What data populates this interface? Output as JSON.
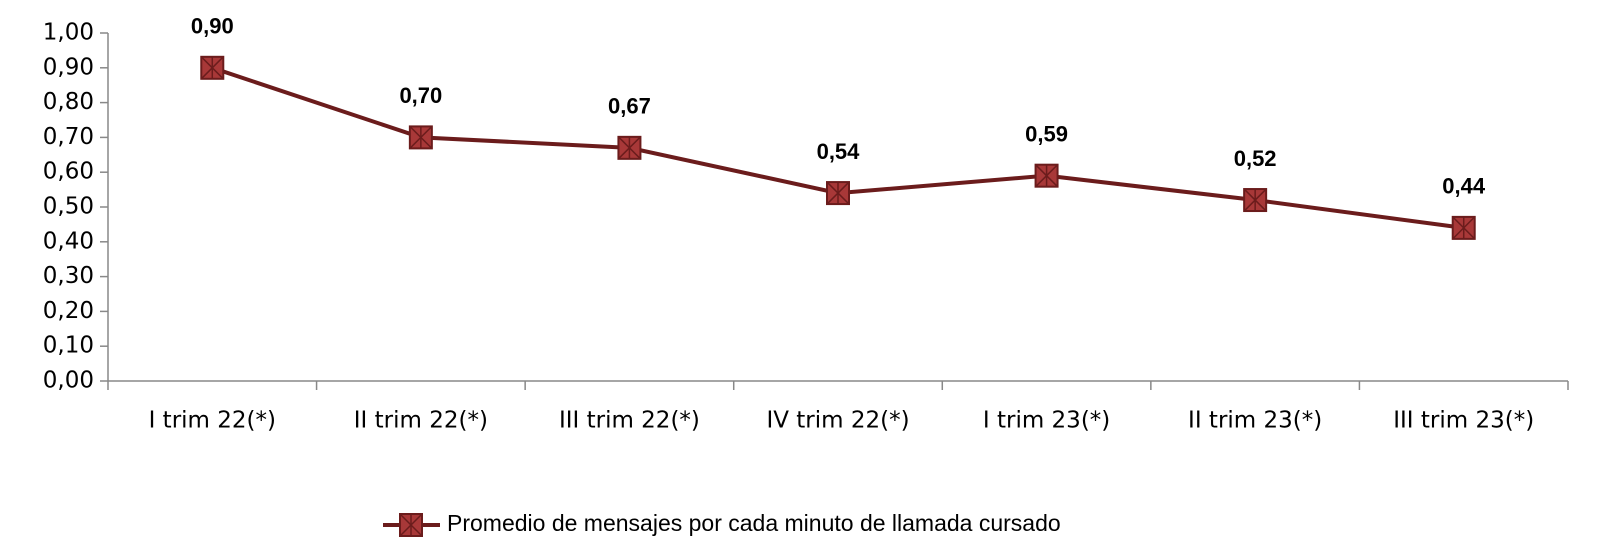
{
  "chart_data": {
    "type": "line",
    "categories": [
      "I trim 22(*)",
      "II trim 22(*)",
      "III trim 22(*)",
      "IV trim 22(*)",
      "I trim 23(*)",
      "II trim 23(*)",
      "III trim 23(*)"
    ],
    "series": [
      {
        "name": "Promedio de mensajes por cada minuto de llamada cursado",
        "color": "#6b1c1c",
        "marker_color": "#a83838",
        "values": [
          0.9,
          0.7,
          0.67,
          0.54,
          0.59,
          0.52,
          0.44
        ],
        "value_labels": [
          "0,90",
          "0,70",
          "0,67",
          "0,54",
          "0,59",
          "0,52",
          "0,44"
        ]
      }
    ],
    "ylim": [
      0,
      1
    ],
    "yticks": [
      {
        "value": 0,
        "label": "0,00"
      },
      {
        "value": 0.1,
        "label": "0,10"
      },
      {
        "value": 0.2,
        "label": "0,20"
      },
      {
        "value": 0.3,
        "label": "0,30"
      },
      {
        "value": 0.4,
        "label": "0,40"
      },
      {
        "value": 0.5,
        "label": "0,50"
      },
      {
        "value": 0.6,
        "label": "0,60"
      },
      {
        "value": 0.7,
        "label": "0,70"
      },
      {
        "value": 0.8,
        "label": "0,80"
      },
      {
        "value": 0.9,
        "label": "0,90"
      },
      {
        "value": 1,
        "label": "1,00"
      }
    ],
    "grid": false,
    "legend": "bottom"
  }
}
